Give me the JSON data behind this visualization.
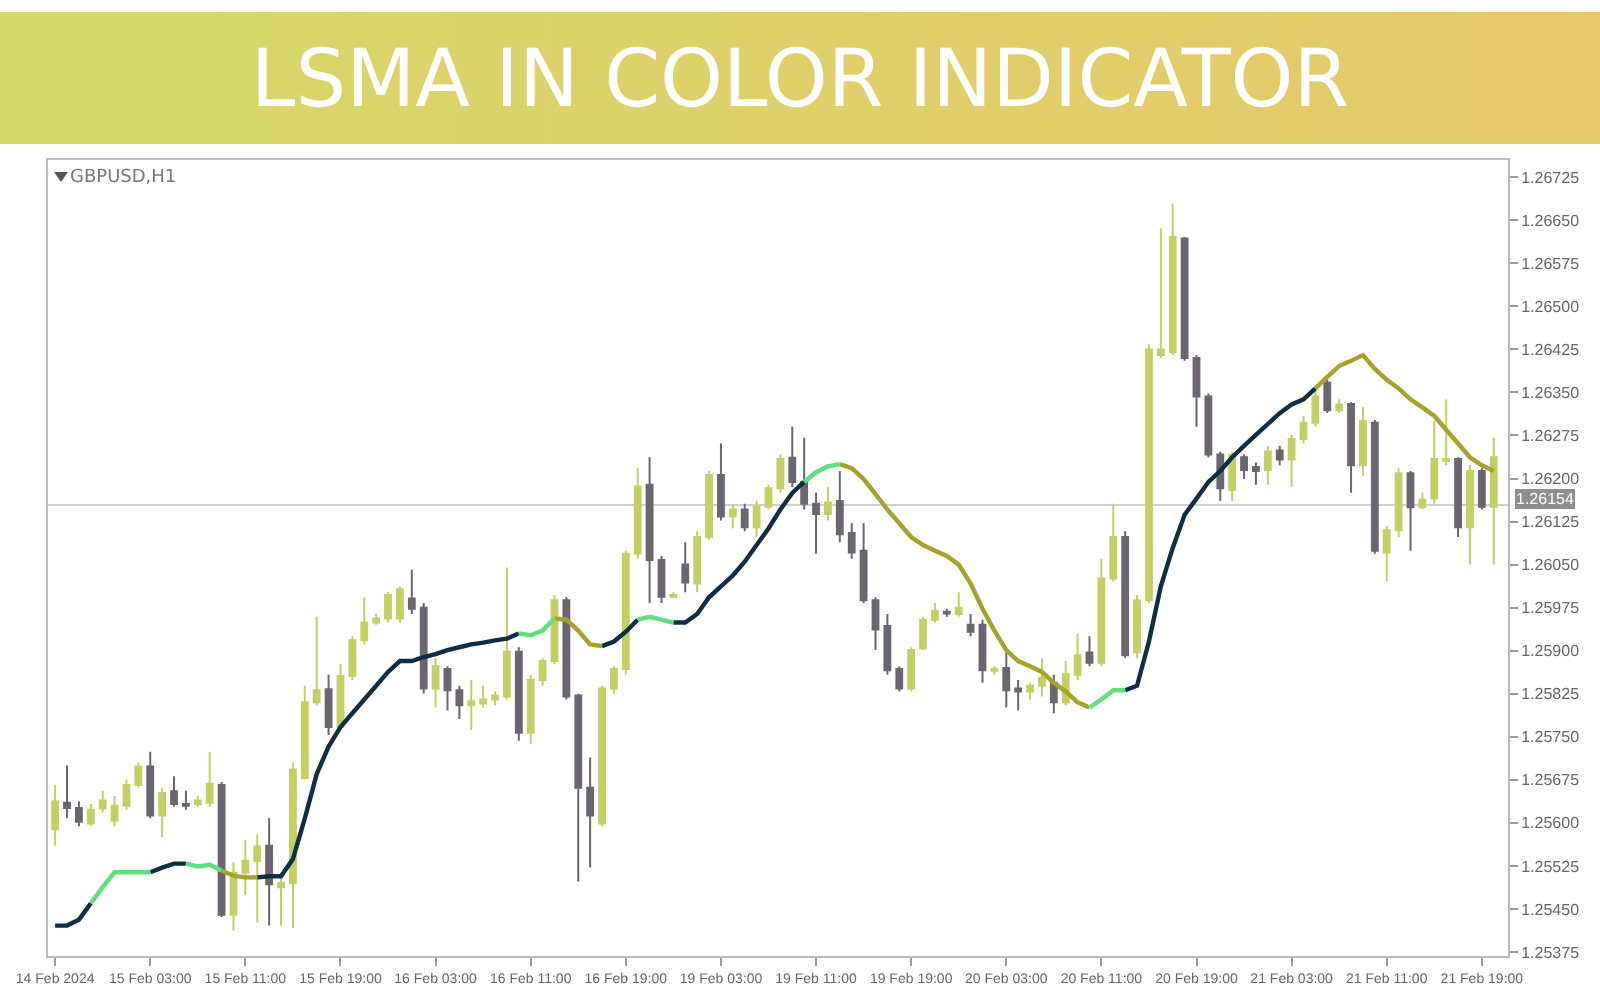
{
  "chart_data": {
    "type": "candlestick",
    "title": "LSMA IN COLOR INDICATOR",
    "annotations": [
      "GBPUSD,H1"
    ],
    "categories": [
      "14 Feb 2024",
      null,
      null,
      null,
      null,
      null,
      null,
      null,
      "15 Feb 03:00",
      null,
      null,
      null,
      null,
      null,
      null,
      null,
      "15 Feb 11:00",
      null,
      null,
      null,
      null,
      null,
      null,
      null,
      "15 Feb 19:00",
      null,
      null,
      null,
      null,
      null,
      null,
      null,
      "16 Feb 03:00",
      null,
      null,
      null,
      null,
      null,
      null,
      null,
      "16 Feb 11:00",
      null,
      null,
      null,
      null,
      null,
      null,
      null,
      "16 Feb 19:00",
      null,
      null,
      null,
      null,
      null,
      null,
      null,
      "19 Feb 03:00",
      null,
      null,
      null,
      null,
      null,
      null,
      null,
      "19 Feb 11:00",
      null,
      null,
      null,
      null,
      null,
      null,
      null,
      "19 Feb 19:00",
      null,
      null,
      null,
      null,
      null,
      null,
      null,
      "20 Feb 03:00",
      null,
      null,
      null,
      null,
      null,
      null,
      null,
      "20 Feb 11:00",
      null,
      null,
      null,
      null,
      null,
      null,
      null,
      "20 Feb 19:00",
      null,
      null,
      null,
      null,
      null,
      null,
      null,
      "21 Feb 03:00",
      null,
      null,
      null,
      null,
      null,
      null,
      null,
      "21 Feb 11:00",
      null,
      null,
      null,
      null,
      null,
      null,
      null,
      "21 Feb 19:00",
      null
    ],
    "ohlc": [
      [
        1.25589,
        1.25666,
        1.2556,
        1.25637
      ],
      [
        1.25635,
        1.257,
        1.25608,
        1.25626
      ],
      [
        1.25626,
        1.25637,
        1.25594,
        1.25602
      ],
      [
        1.25599,
        1.25633,
        1.25594,
        1.25623
      ],
      [
        1.25625,
        1.25656,
        1.25618,
        1.25639
      ],
      [
        1.25604,
        1.25647,
        1.25594,
        1.2563
      ],
      [
        1.2563,
        1.25676,
        1.25623,
        1.25666
      ],
      [
        1.25666,
        1.25705,
        1.25661,
        1.25698
      ],
      [
        1.25698,
        1.25724,
        1.25608,
        1.25613
      ],
      [
        1.25613,
        1.25661,
        1.25575,
        1.25652
      ],
      [
        1.25655,
        1.25681,
        1.25628,
        1.25633
      ],
      [
        1.25633,
        1.25656,
        1.25623,
        1.2563
      ],
      [
        1.25633,
        1.25647,
        1.25628,
        1.25639
      ],
      [
        1.25635,
        1.25724,
        1.25628,
        1.25668
      ],
      [
        1.25666,
        1.25671,
        1.25436,
        1.2544
      ],
      [
        1.2544,
        1.25532,
        1.25412,
        1.25513
      ],
      [
        1.25513,
        1.2557,
        1.25474,
        1.25534
      ],
      [
        1.25534,
        1.2558,
        1.25426,
        1.25559
      ],
      [
        1.2556,
        1.25608,
        1.25421,
        1.25493
      ],
      [
        1.25488,
        1.25513,
        1.25421,
        1.25495
      ],
      [
        1.25495,
        1.25705,
        1.25417,
        1.25693
      ],
      [
        1.25678,
        1.25839,
        1.25676,
        1.2581
      ],
      [
        1.2581,
        1.25959,
        1.25805,
        1.25831
      ],
      [
        1.25833,
        1.25858,
        1.25753,
        1.25767
      ],
      [
        1.25767,
        1.25877,
        1.25762,
        1.25856
      ],
      [
        1.25856,
        1.25925,
        1.25849,
        1.25918
      ],
      [
        1.25918,
        1.25993,
        1.25911,
        1.25949
      ],
      [
        1.25949,
        1.25964,
        1.25945,
        1.25956
      ],
      [
        1.25956,
        1.26002,
        1.25949,
        1.25997
      ],
      [
        1.25956,
        1.26012,
        1.25949,
        1.26007
      ],
      [
        1.25991,
        1.26041,
        1.25964,
        1.25973
      ],
      [
        1.25975,
        1.25983,
        1.25825,
        1.25834
      ],
      [
        1.25834,
        1.25887,
        1.25801,
        1.25873
      ],
      [
        1.25868,
        1.25873,
        1.25796,
        1.25831
      ],
      [
        1.25831,
        1.25839,
        1.25781,
        1.25805
      ],
      [
        1.25805,
        1.25849,
        1.25762,
        1.25812
      ],
      [
        1.25808,
        1.25839,
        1.25801,
        1.25815
      ],
      [
        1.25815,
        1.25829,
        1.25805,
        1.25822
      ],
      [
        1.2582,
        1.26045,
        1.25815,
        1.25898
      ],
      [
        1.25898,
        1.25906,
        1.25743,
        1.25757
      ],
      [
        1.25757,
        1.25858,
        1.25738,
        1.25849
      ],
      [
        1.25849,
        1.25887,
        1.25839,
        1.25882
      ],
      [
        1.25882,
        1.25997,
        1.25877,
        1.25988
      ],
      [
        1.25988,
        1.25993,
        1.25815,
        1.2582
      ],
      [
        1.25822,
        1.25825,
        1.25498,
        1.25661
      ],
      [
        1.25661,
        1.25714,
        1.25522,
        1.25613
      ],
      [
        1.25599,
        1.25839,
        1.25594,
        1.25834
      ],
      [
        1.25834,
        1.25873,
        1.25825,
        1.25868
      ],
      [
        1.25868,
        1.26074,
        1.25858,
        1.26069
      ],
      [
        1.26069,
        1.26218,
        1.2606,
        1.26186
      ],
      [
        1.26189,
        1.26237,
        1.25983,
        1.26058
      ],
      [
        1.26058,
        1.26065,
        1.25983,
        1.25994
      ],
      [
        1.25994,
        1.26002,
        1.25993,
        1.25997
      ],
      [
        1.2605,
        1.26089,
        1.26002,
        1.26019
      ],
      [
        1.26017,
        1.26108,
        1.26002,
        1.26098
      ],
      [
        1.26098,
        1.26213,
        1.26093,
        1.26206
      ],
      [
        1.26206,
        1.26261,
        1.26127,
        1.26134
      ],
      [
        1.26134,
        1.26156,
        1.26113,
        1.26146
      ],
      [
        1.26146,
        1.26156,
        1.26108,
        1.26115
      ],
      [
        1.26115,
        1.26161,
        1.26098,
        1.26151
      ],
      [
        1.26151,
        1.26189,
        1.26146,
        1.26183
      ],
      [
        1.26183,
        1.26242,
        1.26175,
        1.26234
      ],
      [
        1.26236,
        1.2629,
        1.26185,
        1.26194
      ],
      [
        1.26194,
        1.26271,
        1.26146,
        1.26156
      ],
      [
        1.26156,
        1.26175,
        1.26069,
        1.26138
      ],
      [
        1.26138,
        1.26185,
        1.26127,
        1.26158
      ],
      [
        1.26161,
        1.26213,
        1.26089,
        1.26103
      ],
      [
        1.26105,
        1.26122,
        1.2606,
        1.26071
      ],
      [
        1.26074,
        1.26122,
        1.25983,
        1.25988
      ],
      [
        1.25988,
        1.25993,
        1.25901,
        1.25937
      ],
      [
        1.25943,
        1.25964,
        1.25858,
        1.25866
      ],
      [
        1.25868,
        1.25873,
        1.25829,
        1.25834
      ],
      [
        1.25834,
        1.25906,
        1.25829,
        1.25901
      ],
      [
        1.25904,
        1.25959,
        1.25901,
        1.25954
      ],
      [
        1.25954,
        1.25983,
        1.25949,
        1.25969
      ],
      [
        1.25968,
        1.25973,
        1.25959,
        1.25965
      ],
      [
        1.25964,
        1.26002,
        1.25959,
        1.25975
      ],
      [
        1.25945,
        1.25964,
        1.25925,
        1.25933
      ],
      [
        1.25945,
        1.25954,
        1.25844,
        1.25866
      ],
      [
        1.25865,
        1.25873,
        1.25858,
        1.25868
      ],
      [
        1.2587,
        1.25897,
        1.25801,
        1.25831
      ],
      [
        1.25834,
        1.25849,
        1.25796,
        1.25829
      ],
      [
        1.25829,
        1.25844,
        1.25815,
        1.25839
      ],
      [
        1.25839,
        1.25887,
        1.2582,
        1.25853
      ],
      [
        1.25844,
        1.25858,
        1.25791,
        1.2581
      ],
      [
        1.2581,
        1.25882,
        1.25805,
        1.2586
      ],
      [
        1.25858,
        1.2593,
        1.25849,
        1.25892
      ],
      [
        1.25897,
        1.25925,
        1.25873,
        1.25879
      ],
      [
        1.25879,
        1.2606,
        1.25873,
        1.26026
      ],
      [
        1.26026,
        1.26156,
        1.26021,
        1.26098
      ],
      [
        1.26098,
        1.26108,
        1.25887,
        1.25892
      ],
      [
        1.25897,
        1.25997,
        1.25887,
        1.25988
      ],
      [
        1.25988,
        1.26434,
        1.25983,
        1.26425
      ],
      [
        1.26415,
        1.26636,
        1.2641,
        1.26425
      ],
      [
        1.2642,
        1.26679,
        1.26415,
        1.26621
      ],
      [
        1.26618,
        1.26621,
        1.26405,
        1.2641
      ],
      [
        1.2641,
        1.26415,
        1.2629,
        1.26343
      ],
      [
        1.26343,
        1.26348,
        1.26237,
        1.26242
      ],
      [
        1.26242,
        1.26247,
        1.26161,
        1.26183
      ],
      [
        1.2618,
        1.26247,
        1.26161,
        1.26242
      ],
      [
        1.26237,
        1.26242,
        1.26199,
        1.26215
      ],
      [
        1.2622,
        1.26228,
        1.26189,
        1.26213
      ],
      [
        1.26215,
        1.26257,
        1.26189,
        1.26247
      ],
      [
        1.26249,
        1.26257,
        1.26223,
        1.26233
      ],
      [
        1.26233,
        1.26276,
        1.26185,
        1.26269
      ],
      [
        1.26269,
        1.26309,
        1.26261,
        1.26297
      ],
      [
        1.26297,
        1.26353,
        1.2629,
        1.26343
      ],
      [
        1.26367,
        1.26372,
        1.26314,
        1.26319
      ],
      [
        1.26319,
        1.26338,
        1.26314,
        1.26329
      ],
      [
        1.2633,
        1.26333,
        1.26175,
        1.26223
      ],
      [
        1.26223,
        1.26324,
        1.26204,
        1.263
      ],
      [
        1.26297,
        1.26302,
        1.26069,
        1.26074
      ],
      [
        1.26071,
        1.26117,
        1.26021,
        1.2611
      ],
      [
        1.2611,
        1.26218,
        1.26098,
        1.26209
      ],
      [
        1.26209,
        1.26213,
        1.26074,
        1.2615
      ],
      [
        1.2615,
        1.26175,
        1.26146,
        1.26163
      ],
      [
        1.26165,
        1.263,
        1.26156,
        1.26234
      ],
      [
        1.26231,
        1.26338,
        1.26223,
        1.26234
      ],
      [
        1.26234,
        1.26237,
        1.26098,
        1.26115
      ],
      [
        1.26115,
        1.26223,
        1.2605,
        1.26213
      ],
      [
        1.26213,
        1.26218,
        1.26146,
        1.26151
      ],
      [
        1.26151,
        1.26271,
        1.2605,
        1.26237
      ]
    ],
    "colors": [
      "#c3cf63",
      "#6b6570",
      "#6b6570",
      "#c3cf63",
      "#c3cf63",
      "#c3cf63",
      "#c3cf63",
      "#c3cf63",
      "#6b6570",
      "#c3cf63",
      "#6b6570",
      "#6b6570",
      "#c3cf63",
      "#c3cf63",
      "#6b6570",
      "#c3cf63",
      "#c3cf63",
      "#c3cf63",
      "#6b6570",
      "#c3cf63",
      "#c3cf63",
      "#c3cf63",
      "#c3cf63",
      "#6b6570",
      "#c3cf63",
      "#c3cf63",
      "#c3cf63",
      "#c3cf63",
      "#c3cf63",
      "#c3cf63",
      "#6b6570",
      "#6b6570",
      "#c3cf63",
      "#6b6570",
      "#6b6570",
      "#c3cf63",
      "#c3cf63",
      "#c3cf63",
      "#c3cf63",
      "#6b6570",
      "#c3cf63",
      "#c3cf63",
      "#c3cf63",
      "#6b6570",
      "#6b6570",
      "#6b6570",
      "#c3cf63",
      "#c3cf63",
      "#c3cf63",
      "#c3cf63",
      "#6b6570",
      "#6b6570",
      "#c3cf63",
      "#6b6570",
      "#c3cf63",
      "#c3cf63",
      "#6b6570",
      "#c3cf63",
      "#6b6570",
      "#c3cf63",
      "#c3cf63",
      "#c3cf63",
      "#6b6570",
      "#6b6570",
      "#6b6570",
      "#c3cf63",
      "#6b6570",
      "#6b6570",
      "#6b6570",
      "#6b6570",
      "#6b6570",
      "#6b6570",
      "#c3cf63",
      "#c3cf63",
      "#c3cf63",
      "#6b6570",
      "#c3cf63",
      "#6b6570",
      "#6b6570",
      "#c3cf63",
      "#6b6570",
      "#6b6570",
      "#c3cf63",
      "#c3cf63",
      "#6b6570",
      "#c3cf63",
      "#c3cf63",
      "#6b6570",
      "#c3cf63",
      "#c3cf63",
      "#6b6570",
      "#c3cf63",
      "#c3cf63",
      "#c3cf63",
      "#c3cf63",
      "#6b6570",
      "#6b6570",
      "#6b6570",
      "#6b6570",
      "#c3cf63",
      "#6b6570",
      "#6b6570",
      "#c3cf63",
      "#6b6570",
      "#c3cf63",
      "#c3cf63",
      "#c3cf63",
      "#6b6570",
      "#c3cf63",
      "#6b6570",
      "#c3cf63",
      "#6b6570",
      "#c3cf63",
      "#c3cf63",
      "#6b6570",
      "#c3cf63",
      "#c3cf63",
      "#c3cf63",
      "#6b6570",
      "#c3cf63",
      "#6b6570",
      "#c3cf63"
    ],
    "series": [
      {
        "type": "line",
        "color": "#0f2d44",
        "values": [
          1.25421,
          1.25421,
          1.25431,
          1.2546,
          null,
          null,
          null,
          null,
          1.25514,
          1.25522,
          1.25529,
          1.25529,
          null,
          null,
          null,
          null,
          null,
          1.25505,
          1.25507,
          1.25507,
          1.25537,
          1.25608,
          1.25685,
          1.25733,
          1.25767,
          1.25791,
          1.25815,
          1.25839,
          1.25863,
          1.25882,
          1.25882,
          1.25889,
          1.25894,
          1.25901,
          1.25906,
          1.25911,
          1.25914,
          1.25918,
          1.25921,
          1.2593,
          null,
          null,
          null,
          null,
          null,
          null,
          1.25908,
          1.25916,
          1.25933,
          1.25954,
          null,
          null,
          1.25949,
          1.25949,
          1.25964,
          1.25993,
          1.26012,
          1.26031,
          1.26055,
          1.26084,
          1.26113,
          1.26146,
          1.26175,
          1.26194,
          null,
          null,
          null,
          null,
          null,
          null,
          null,
          null,
          null,
          null,
          null,
          null,
          null,
          null,
          null,
          null,
          null,
          null,
          null,
          null,
          null,
          null,
          null,
          null,
          null,
          null,
          1.25831,
          1.25839,
          1.25916,
          1.26012,
          1.26079,
          1.26137,
          1.26165,
          1.26194,
          1.26213,
          1.26237,
          1.26257,
          1.26276,
          1.26295,
          1.26314,
          1.26329,
          1.26338,
          1.26357,
          null,
          null,
          null,
          null,
          null,
          null,
          null,
          null,
          null,
          null,
          null,
          null,
          null,
          null,
          null
        ]
      },
      {
        "type": "line",
        "color": "#a5a32a",
        "values": [
          null,
          null,
          null,
          null,
          null,
          null,
          null,
          null,
          null,
          null,
          null,
          null,
          null,
          null,
          1.25517,
          1.25508,
          1.25505,
          1.25505,
          null,
          null,
          null,
          null,
          null,
          null,
          null,
          null,
          null,
          null,
          null,
          null,
          null,
          null,
          null,
          null,
          null,
          null,
          null,
          null,
          null,
          null,
          null,
          null,
          1.25956,
          1.25954,
          1.25935,
          1.25911,
          1.25908,
          null,
          null,
          null,
          null,
          null,
          null,
          null,
          null,
          null,
          null,
          null,
          null,
          null,
          null,
          null,
          null,
          null,
          null,
          null,
          1.26225,
          1.26218,
          1.26199,
          1.26173,
          1.26146,
          1.26122,
          1.26098,
          1.26084,
          1.26074,
          1.26065,
          1.2605,
          1.26017,
          1.25973,
          1.25935,
          1.25901,
          1.25882,
          1.25873,
          1.25863,
          1.25844,
          1.25829,
          1.2581,
          1.25801,
          null,
          null,
          null,
          null,
          null,
          null,
          null,
          null,
          null,
          null,
          null,
          null,
          null,
          null,
          null,
          null,
          null,
          null,
          1.26357,
          1.26377,
          1.26396,
          1.26405,
          1.26415,
          1.26391,
          1.26372,
          1.26357,
          1.26338,
          1.26324,
          1.26309,
          1.26285,
          1.26261,
          1.26237,
          1.26223,
          1.26213
        ]
      },
      {
        "type": "line",
        "color": "#5fe07c",
        "values": [
          null,
          null,
          null,
          1.2546,
          1.25488,
          1.25514,
          1.25514,
          1.25514,
          1.25514,
          null,
          null,
          1.25529,
          1.25524,
          1.25527,
          1.25517,
          null,
          null,
          null,
          null,
          null,
          null,
          null,
          null,
          null,
          null,
          null,
          null,
          null,
          null,
          null,
          null,
          null,
          null,
          null,
          null,
          null,
          null,
          null,
          null,
          1.2593,
          1.25927,
          1.25935,
          1.25956,
          null,
          null,
          null,
          null,
          null,
          null,
          1.25954,
          1.25959,
          1.25954,
          1.25949,
          null,
          null,
          null,
          null,
          null,
          null,
          null,
          null,
          null,
          null,
          1.26194,
          1.26211,
          1.26221,
          1.26225,
          null,
          null,
          null,
          null,
          null,
          null,
          null,
          null,
          null,
          null,
          null,
          null,
          null,
          null,
          null,
          null,
          null,
          null,
          null,
          null,
          1.25801,
          1.25815,
          1.25831,
          1.25831,
          null,
          null,
          null,
          null,
          null,
          null,
          null,
          null,
          null,
          null,
          null,
          null,
          null,
          null,
          null,
          null,
          null,
          null,
          null,
          null,
          null,
          null,
          null,
          null,
          null,
          null,
          null,
          null,
          null,
          null,
          null
        ]
      }
    ],
    "ylim": [
      1.25368,
      1.26755
    ],
    "yticks": [
      1.25375,
      {
        "value": 1.2545,
        "label": "1.25450"
      },
      1.25525,
      {
        "value": 1.256,
        "label": "1.25600"
      },
      1.25675,
      {
        "value": 1.2575,
        "label": "1.25750"
      },
      1.25825,
      {
        "value": 1.259,
        "label": "1.25900"
      },
      1.25975,
      {
        "value": 1.2605,
        "label": "1.26050"
      },
      1.26125,
      {
        "value": 1.262,
        "label": "1.26200"
      },
      1.26275,
      {
        "value": 1.2635,
        "label": "1.26350"
      },
      1.26425,
      {
        "value": 1.265,
        "label": "1.26500"
      },
      1.26575,
      {
        "value": 1.2665,
        "label": "1.26650"
      },
      1.26725
    ],
    "ref_lines": [
      {
        "axis": "y",
        "value": 1.26154,
        "label": "1.26154",
        "color": "#cfcfcf"
      }
    ],
    "grid": false
  }
}
